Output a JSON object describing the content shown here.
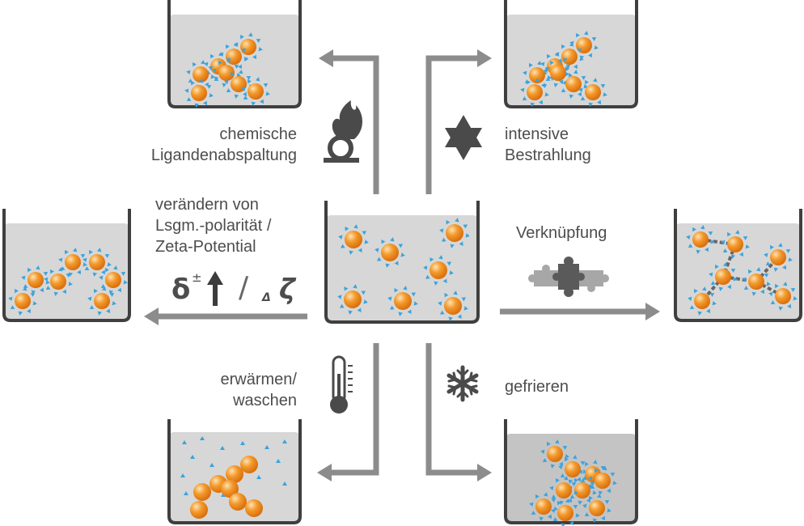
{
  "labels": {
    "top_left": [
      "chemische",
      "Ligandenabspaltung"
    ],
    "top_right": [
      "intensive",
      "Bestrahlung"
    ],
    "left": [
      "verändern von",
      "Lsgm.-polarität /",
      "Zeta-Potential"
    ],
    "right": "Verknüpfung",
    "bottom_left": [
      "erwärmen/",
      "waschen"
    ],
    "bottom_right": "gefrieren"
  },
  "formula": {
    "delta": "δ",
    "pm": "±",
    "slash": "/",
    "small_delta": "Δ",
    "zeta": "ζ"
  },
  "colors": {
    "beaker": "#3f3f3f",
    "liquid": "#d7d7d7",
    "liquid_dark": "#c4c4c4",
    "arrow": "#8c8c8c",
    "particle": "#f28c1c",
    "particle_light": "#ffd9a0",
    "ligand": "#3aa3dc",
    "icon": "#4a4a4a",
    "linker": "#666666"
  },
  "icons": [
    "flame-over-circle-icon",
    "star-of-david-sun-icon",
    "puzzle-icon",
    "thermometer-icon",
    "snowflake-icon",
    "up-arrow-icon"
  ]
}
